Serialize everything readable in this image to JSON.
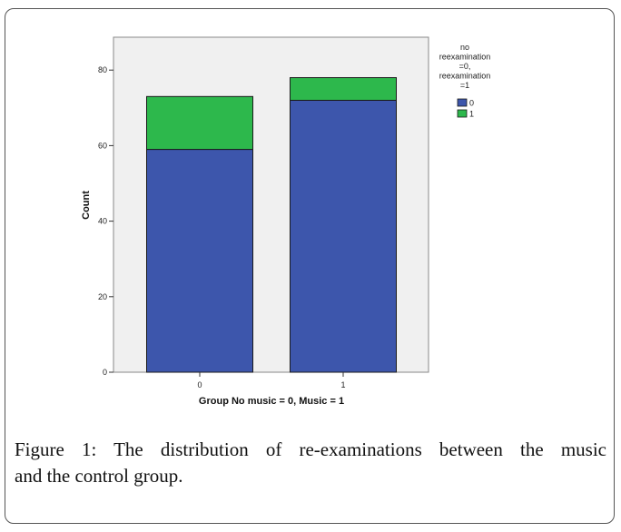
{
  "chart_data": {
    "type": "bar",
    "stacked": true,
    "categories": [
      "0",
      "1"
    ],
    "series": [
      {
        "name": "0",
        "values": [
          59,
          72
        ],
        "color": "#3d56ac"
      },
      {
        "name": "1",
        "values": [
          14,
          6
        ],
        "color": "#2db84c"
      }
    ],
    "totals": [
      73,
      78
    ],
    "title": "",
    "xlabel": "Group No music = 0, Music = 1",
    "ylabel": "Count",
    "ylim": [
      0,
      80
    ],
    "yticks": [
      "0",
      "20",
      "40",
      "60",
      "80"
    ],
    "plot_background": "#f0f0f0",
    "grid": false,
    "legend": {
      "position": "right",
      "title_lines": [
        "no",
        "reexamination",
        "=0,",
        "reexamination",
        "=1"
      ],
      "entries": [
        "0",
        "1"
      ]
    }
  },
  "caption": {
    "label": "Figure 1:",
    "line1": "The distribution of re-examinations between the music",
    "line2": "and the control group."
  }
}
